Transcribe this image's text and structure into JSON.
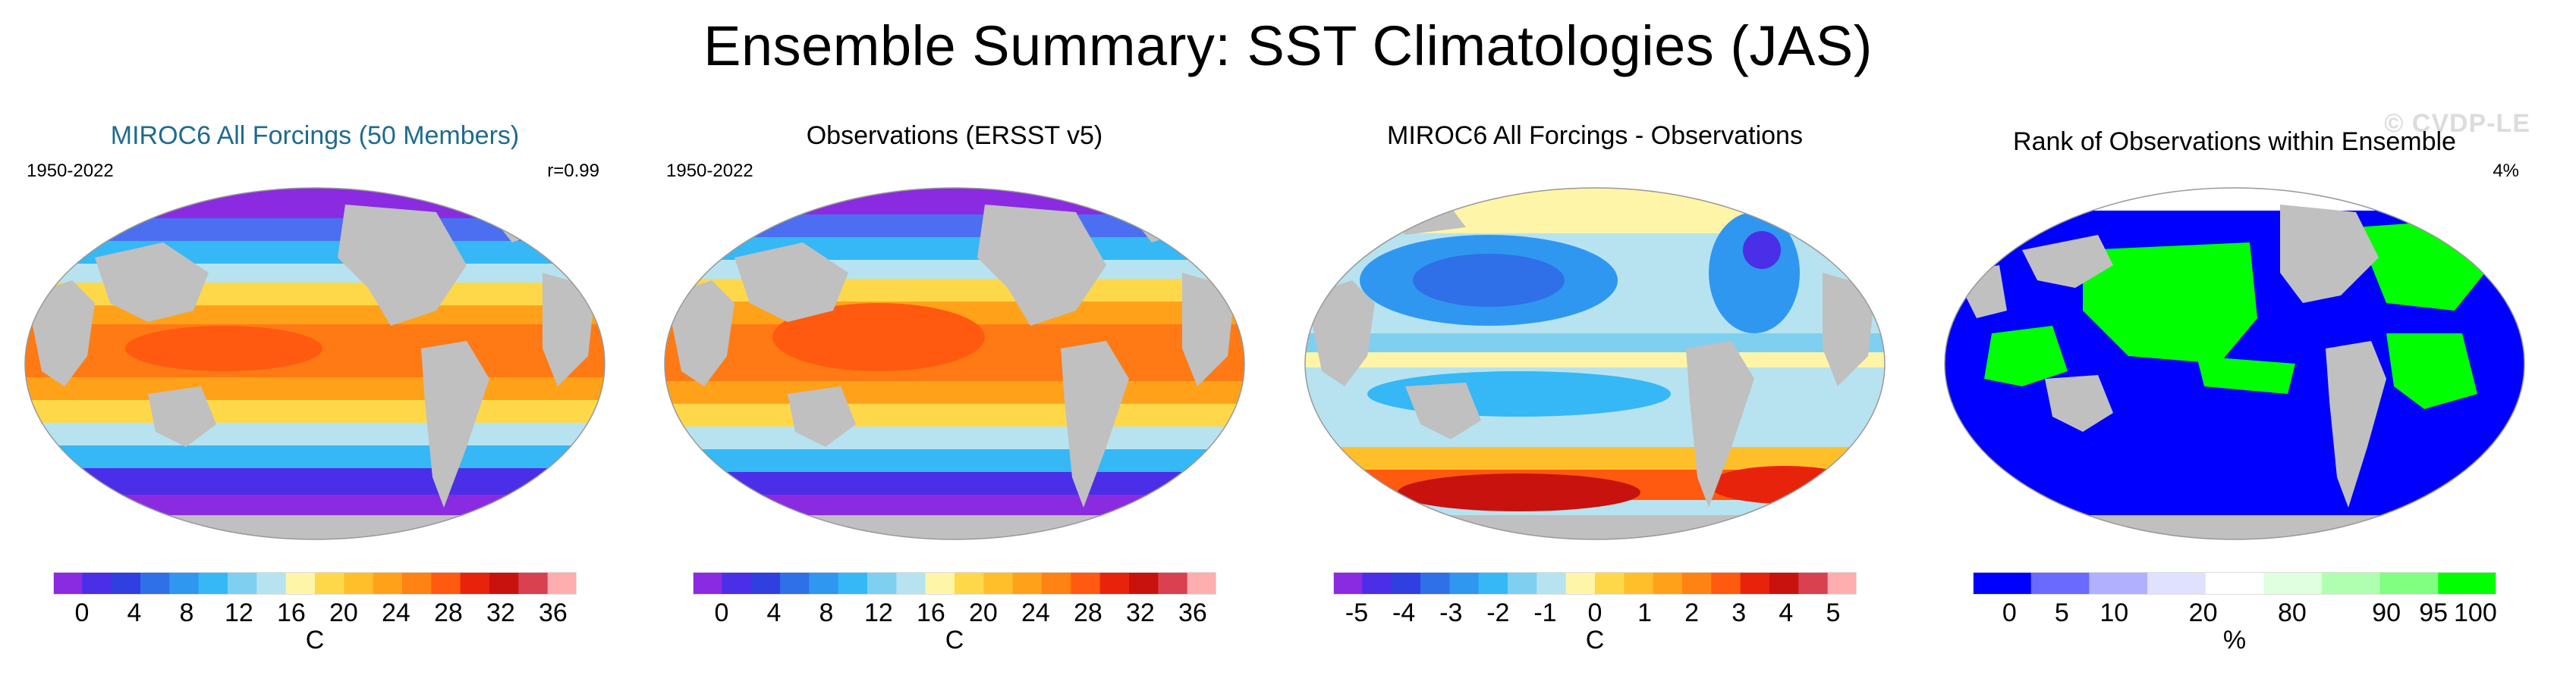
{
  "figure_title": "Ensemble Summary: SST Climatologies (JAS)",
  "watermark": "© CVDP-LE",
  "panels": [
    {
      "title": "MIROC6 All Forcings (50 Members)",
      "period": "1950-2022",
      "note": "r=0.99",
      "colorbar": {
        "ticks": [
          "0",
          "4",
          "8",
          "12",
          "16",
          "20",
          "24",
          "28",
          "32",
          "36"
        ],
        "unit": "C",
        "colors": [
          "#8a2be2",
          "#4b2ee8",
          "#2f3fe0",
          "#2f6fe8",
          "#2f97f0",
          "#35b8f5",
          "#7fd0f0",
          "#b7e3f0",
          "#fff5a8",
          "#ffd84a",
          "#ffbf2a",
          "#ffa21a",
          "#ff8214",
          "#ff5a0f",
          "#e8230c",
          "#c8120e",
          "#d94050",
          "#ffaeb0"
        ]
      }
    },
    {
      "title": "Observations (ERSST v5)",
      "period": "1950-2022",
      "note": "",
      "colorbar": {
        "ticks": [
          "0",
          "4",
          "8",
          "12",
          "16",
          "20",
          "24",
          "28",
          "32",
          "36"
        ],
        "unit": "C",
        "colors": [
          "#8a2be2",
          "#4b2ee8",
          "#2f3fe0",
          "#2f6fe8",
          "#2f97f0",
          "#35b8f5",
          "#7fd0f0",
          "#b7e3f0",
          "#fff5a8",
          "#ffd84a",
          "#ffbf2a",
          "#ffa21a",
          "#ff8214",
          "#ff5a0f",
          "#e8230c",
          "#c8120e",
          "#d94050",
          "#ffaeb0"
        ]
      }
    },
    {
      "title": "MIROC6 All Forcings - Observations",
      "period": "",
      "note": "",
      "colorbar": {
        "ticks": [
          "-5",
          "-4",
          "-3",
          "-2",
          "-1",
          "0",
          "1",
          "2",
          "3",
          "4",
          "5"
        ],
        "unit": "C",
        "colors": [
          "#8a2be2",
          "#4b2ee8",
          "#2f3fe0",
          "#2f6fe8",
          "#2f97f0",
          "#35b8f5",
          "#7fd0f0",
          "#b7e3f0",
          "#fff5a8",
          "#ffd84a",
          "#ffbf2a",
          "#ffa21a",
          "#ff8214",
          "#ff5a0f",
          "#e8230c",
          "#c8120e",
          "#d94050",
          "#ffaeb0"
        ]
      }
    },
    {
      "title": "Rank of Observations within Ensemble",
      "period": "",
      "note": "4%",
      "colorbar": {
        "ticks": [
          "0",
          "5",
          "10",
          "20",
          "80",
          "90",
          "95",
          "100"
        ],
        "unit": "%",
        "colors": [
          "#0000ff",
          "#6a6aff",
          "#b0b0ff",
          "#e0e0ff",
          "#ffffff",
          "#e0ffe0",
          "#b0ffb0",
          "#80ff80",
          "#00ff00"
        ]
      }
    }
  ]
}
